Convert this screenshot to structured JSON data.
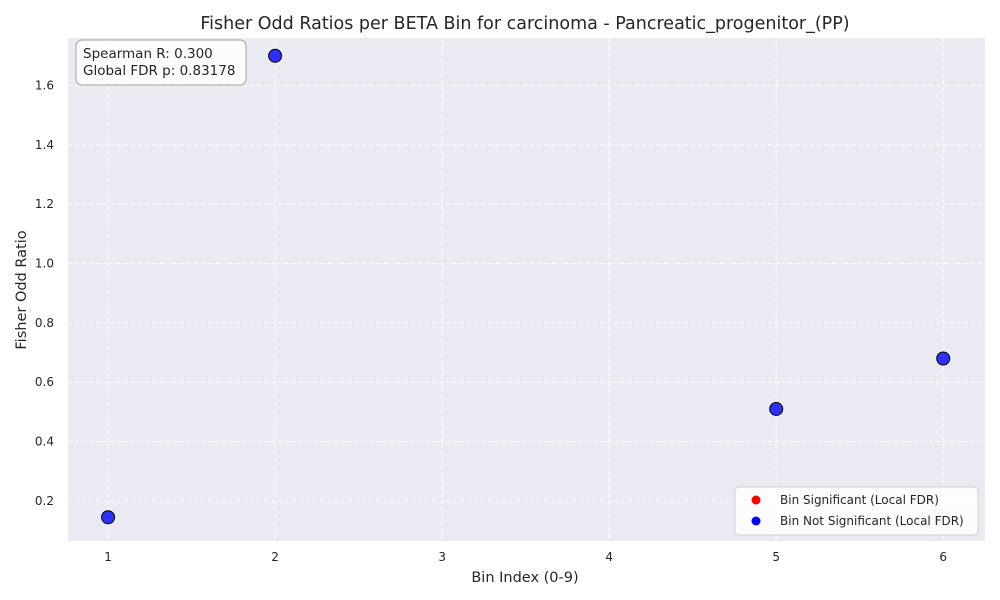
{
  "chart_data": {
    "type": "scatter",
    "title": "Fisher Odd Ratios per BETA Bin for carcinoma - Pancreatic_progenitor_(PP)",
    "xlabel": "Bin Index (0-9)",
    "ylabel": "Fisher Odd Ratio",
    "xlim": [
      0.76,
      6.25
    ],
    "ylim": [
      0.065,
      1.76
    ],
    "xticks": [
      "1",
      "2",
      "3",
      "4",
      "5",
      "6"
    ],
    "yticks": [
      "0.2",
      "0.4",
      "0.6",
      "0.8",
      "1.0",
      "1.2",
      "1.4",
      "1.6"
    ],
    "grid": true,
    "legend_position": "bottom-right",
    "series": [
      {
        "name": "Bin Significant (Local FDR)",
        "color": "#ff0000",
        "points": []
      },
      {
        "name": "Bin Not Significant (Local FDR)",
        "color": "#0000ff",
        "points": [
          {
            "x": 1,
            "y": 0.145
          },
          {
            "x": 2,
            "y": 1.7
          },
          {
            "x": 5,
            "y": 0.51
          },
          {
            "x": 6,
            "y": 0.68
          }
        ]
      }
    ],
    "annotations": {
      "spearman": "Spearman R: 0.300",
      "fdr": "Global FDR p: 0.83178"
    }
  }
}
